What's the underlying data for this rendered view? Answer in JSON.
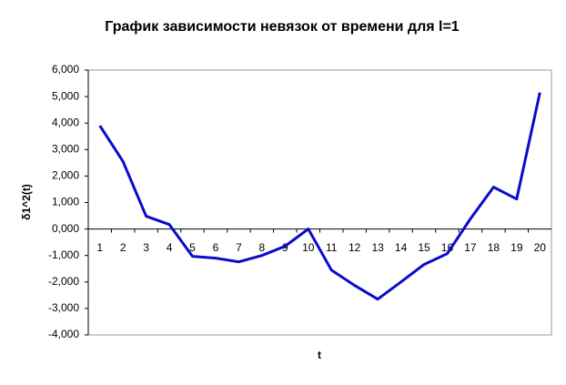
{
  "chart_data": {
    "type": "line",
    "title": "График зависимости невязок от времени для l=1",
    "x_label": "t",
    "y_label": "δ1^2(t)",
    "categories": [
      "1",
      "2",
      "3",
      "4",
      "5",
      "6",
      "7",
      "8",
      "9",
      "10",
      "11",
      "12",
      "13",
      "14",
      "15",
      "16",
      "17",
      "18",
      "19",
      "20"
    ],
    "series": [
      {
        "name": "δ1^2(t)",
        "color": "#0a0acc",
        "values": [
          3.9,
          2.55,
          0.48,
          0.17,
          -1.03,
          -1.1,
          -1.24,
          -1.0,
          -0.65,
          0,
          -1.55,
          -2.13,
          -2.65,
          -2.0,
          -1.34,
          -0.93,
          0.38,
          1.58,
          1.13,
          5.15
        ]
      }
    ],
    "ylim": [
      -4,
      6
    ],
    "yticks": [
      {
        "value": -4,
        "label": "-4,000"
      },
      {
        "value": -3,
        "label": "-3,000"
      },
      {
        "value": -2,
        "label": "-2,000"
      },
      {
        "value": -1,
        "label": "-1,000"
      },
      {
        "value": 0,
        "label": "0,000"
      },
      {
        "value": 1,
        "label": "1,000"
      },
      {
        "value": 2,
        "label": "2,000"
      },
      {
        "value": 3,
        "label": "3,000"
      },
      {
        "value": 4,
        "label": "4,000"
      },
      {
        "value": 5,
        "label": "5,000"
      },
      {
        "value": 6,
        "label": "6,000"
      }
    ],
    "grid": false,
    "legend": false
  }
}
